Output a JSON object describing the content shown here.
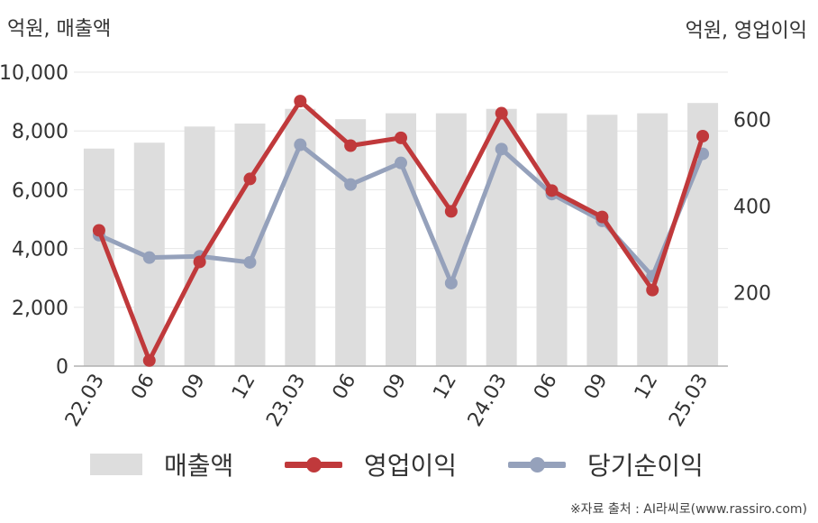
{
  "units": {
    "left": "억원, 매출액",
    "right": "억원, 영업이익"
  },
  "source": "※자료 출처 : AI라씨로(www.rassiro.com)",
  "colors": {
    "bar": "#dddddd",
    "operating_profit": "#c0393b",
    "net_income": "#95a1bb",
    "grid": "#e6e6e6",
    "axis": "#b0b0b0"
  },
  "chart_data": {
    "type": "bar+line",
    "categories": [
      "22.03",
      "06",
      "09",
      "12",
      "23.03",
      "06",
      "09",
      "12",
      "24.03",
      "06",
      "09",
      "12",
      "25.03"
    ],
    "y_left": {
      "ticks": [
        0,
        2000,
        4000,
        6000,
        8000,
        10000
      ],
      "tick_labels": [
        "0",
        "2,000",
        "4,000",
        "6,000",
        "8,000",
        "10,000"
      ],
      "range": [
        0,
        10000
      ]
    },
    "y_right": {
      "ticks": [
        200,
        400,
        600
      ],
      "tick_labels": [
        "200",
        "400",
        "600"
      ],
      "range": [
        30,
        710
      ]
    },
    "series": [
      {
        "name": "매출액",
        "type": "bar",
        "axis": "left",
        "values": [
          7400,
          7600,
          8150,
          8250,
          8750,
          8400,
          8600,
          8600,
          8750,
          8600,
          8550,
          8600,
          8950
        ]
      },
      {
        "name": "영업이익",
        "type": "line",
        "axis": "right",
        "values": [
          344,
          43,
          271,
          463,
          643,
          540,
          558,
          388,
          615,
          436,
          375,
          206,
          562
        ]
      },
      {
        "name": "당기순이익",
        "type": "line",
        "axis": "right",
        "values": [
          333,
          281,
          284,
          270,
          542,
          450,
          500,
          222,
          532,
          428,
          366,
          238,
          521
        ]
      }
    ],
    "grid": true,
    "legend": "bottom"
  }
}
